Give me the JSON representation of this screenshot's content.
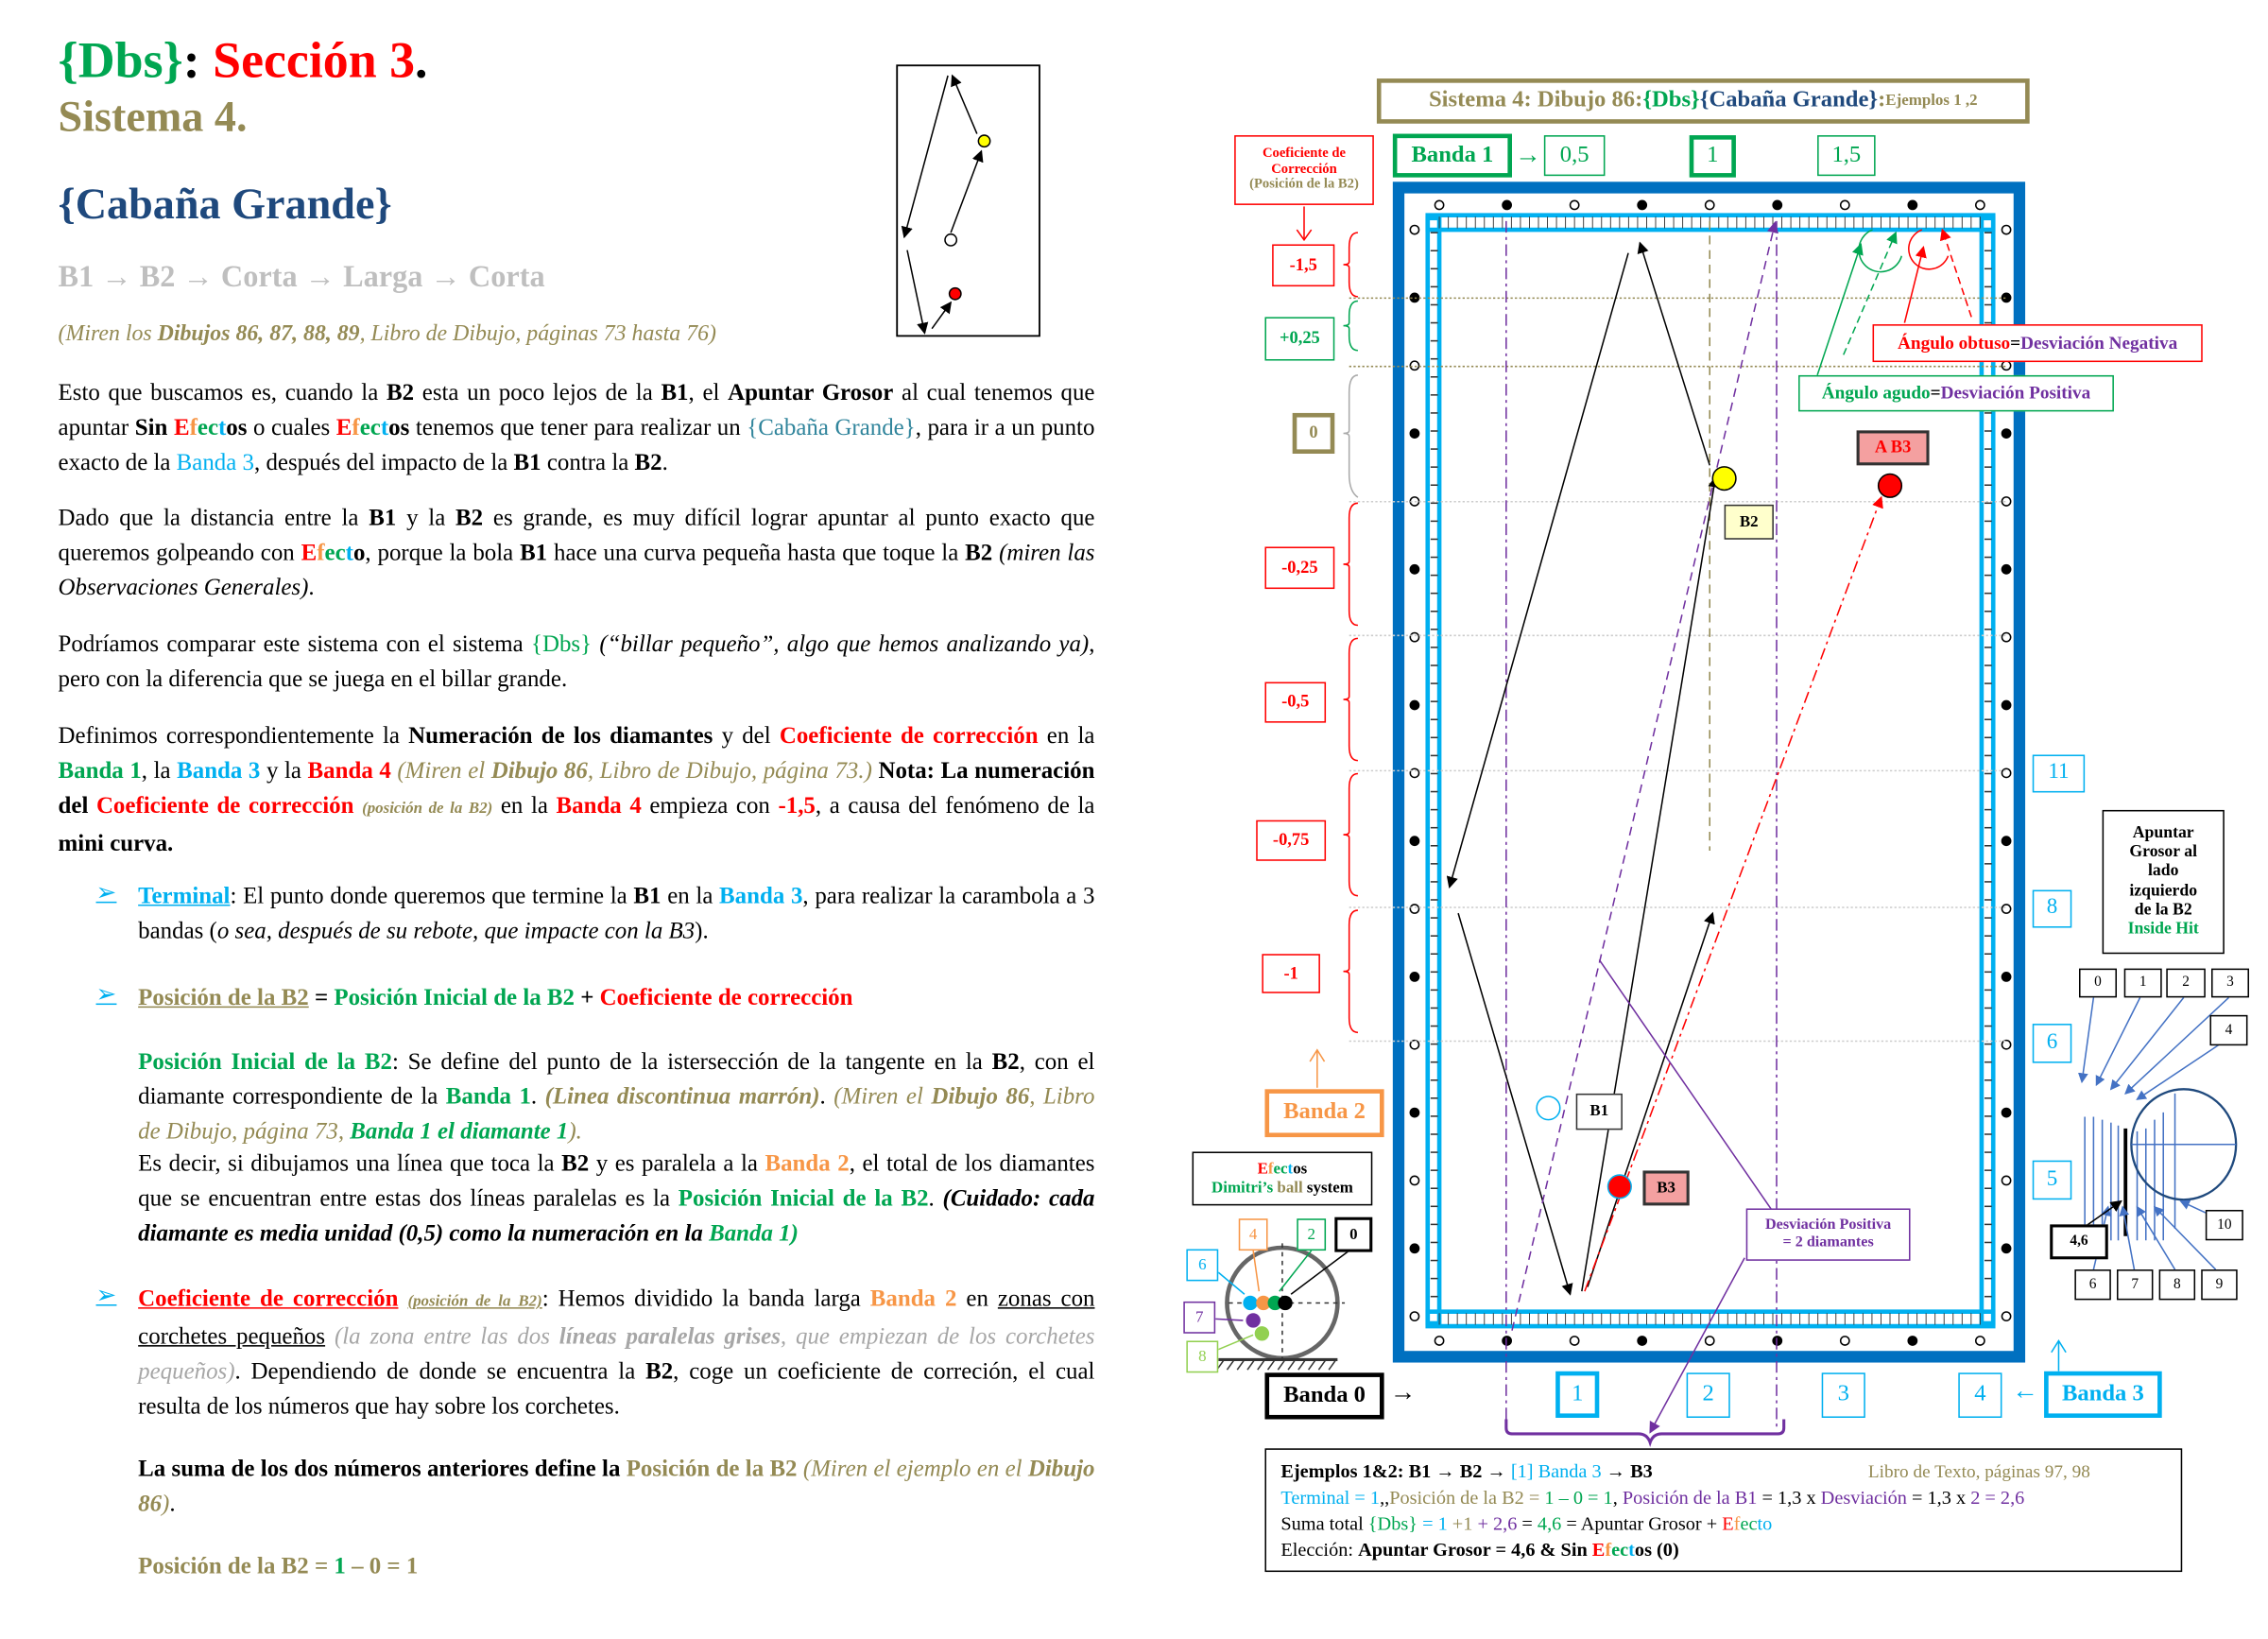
{
  "header": {
    "title": [
      [
        "{Dbs}",
        "g"
      ],
      [
        ": ",
        "k"
      ],
      [
        "Sección 3",
        "r"
      ],
      [
        ".",
        "k"
      ]
    ],
    "sistema": "Sistema 4.",
    "cabana": "{Cabaña Grande}",
    "route": "B1 → B2 → Corta → Larga → Corta",
    "ref": [
      [
        "(Miren los ",
        ""
      ],
      [
        "Dibujos 86, 87, 88, 89",
        "b"
      ],
      [
        ", Libro de Dibujo, páginas 73 hasta 76)",
        ""
      ]
    ]
  },
  "colors": {
    "green": "#00A651",
    "red": "#FF0000",
    "olive": "#948A54",
    "cyan": "#00B0F0",
    "orange": "#F79646",
    "purple": "#7030A0",
    "navy": "#1F497D",
    "table_blue": "#0070C0"
  },
  "body": {
    "p1": [
      [
        "Esto que buscamos es, cuando la ",
        ""
      ],
      [
        "B2",
        "b"
      ],
      [
        " esta un poco lejos de la ",
        ""
      ],
      [
        "B1",
        "b"
      ],
      [
        ", el ",
        ""
      ],
      [
        "Apuntar Grosor",
        "b"
      ],
      [
        " al cual tenemos que apuntar ",
        ""
      ],
      [
        "Sin",
        "b"
      ],
      [
        " ",
        ""
      ],
      [
        "E",
        "b r"
      ],
      [
        "f",
        "b or"
      ],
      [
        "ec",
        "b g"
      ],
      [
        "t",
        "b c"
      ],
      [
        "os",
        "b"
      ],
      [
        " o cuales ",
        ""
      ],
      [
        "E",
        "b r"
      ],
      [
        "f",
        "b or"
      ],
      [
        "ec",
        "b g"
      ],
      [
        "t",
        "b c"
      ],
      [
        "os",
        "b"
      ],
      [
        " tenemos que tener para realizar un ",
        ""
      ],
      [
        "{Cabaña Grande}",
        "t"
      ],
      [
        ", para ir a un punto exacto de la ",
        ""
      ],
      [
        "Banda 3",
        "c"
      ],
      [
        ", después del impacto de la ",
        ""
      ],
      [
        "B1",
        "b"
      ],
      [
        " contra la ",
        ""
      ],
      [
        "B2",
        "b"
      ],
      [
        ".",
        ""
      ]
    ],
    "p2": [
      [
        "Dado que la distancia entre la ",
        ""
      ],
      [
        "B1",
        "b"
      ],
      [
        " y la ",
        ""
      ],
      [
        "B2",
        "b"
      ],
      [
        " es grande, es muy difícil lograr apuntar al punto exacto que queremos golpeando con ",
        ""
      ],
      [
        "E",
        "b r"
      ],
      [
        "f",
        "b or"
      ],
      [
        "ec",
        "b g"
      ],
      [
        "t",
        "b c"
      ],
      [
        "o",
        "b"
      ],
      [
        ", porque la bola ",
        ""
      ],
      [
        "B1",
        "b"
      ],
      [
        " hace una curva pequeña hasta que toque la ",
        ""
      ],
      [
        "B2",
        "b"
      ],
      [
        " ",
        ""
      ],
      [
        "(miren las Observaciones Generales)",
        "i"
      ],
      [
        ".",
        ""
      ]
    ],
    "p3": [
      [
        "Podríamos comparar este sistema con el sistema ",
        ""
      ],
      [
        "{Dbs}",
        "g"
      ],
      [
        " ",
        ""
      ],
      [
        "(“billar pequeño”, algo que hemos analizando ya)",
        "i"
      ],
      [
        ", pero con la diferencia que se juega en el billar grande.",
        ""
      ]
    ],
    "p4": [
      [
        "Definimos correspondientemente la ",
        ""
      ],
      [
        "Numeración de los diamantes",
        "b"
      ],
      [
        " y del ",
        ""
      ],
      [
        "Coeficiente de corrección",
        "b r"
      ],
      [
        " en la ",
        ""
      ],
      [
        "Banda 1",
        "b g"
      ],
      [
        ", la ",
        ""
      ],
      [
        "Banda 3",
        "b c"
      ],
      [
        " y la ",
        ""
      ],
      [
        "Banda 4",
        "b r"
      ],
      [
        " ",
        ""
      ],
      [
        "(Miren el ",
        "i o"
      ],
      [
        "Dibujo 86",
        "i o b"
      ],
      [
        ", Libro de Dibujo, página 73.)",
        "i o"
      ],
      [
        " ",
        ""
      ],
      [
        "Nota: La numeración del ",
        "b"
      ],
      [
        "Coeficiente de corrección",
        "b r"
      ],
      [
        " ",
        ""
      ],
      [
        "(posición de la B2)",
        "i o b sm"
      ],
      [
        " en la ",
        ""
      ],
      [
        "Banda 4",
        "b r"
      ],
      [
        " empieza con ",
        ""
      ],
      [
        "-1,5",
        "b r"
      ],
      [
        ", a causa del fenómeno de la ",
        ""
      ],
      [
        "mini curva.",
        "b"
      ]
    ],
    "b1": [
      [
        "Terminal",
        "u c b"
      ],
      [
        ": El punto donde queremos que termine la ",
        ""
      ],
      [
        "B1",
        "b"
      ],
      [
        " en la ",
        ""
      ],
      [
        "Banda 3",
        "b c"
      ],
      [
        ", para realizar la carambola a 3 bandas (",
        ""
      ],
      [
        "o sea, después de su rebote, que impacte con la B3",
        "i"
      ],
      [
        ").",
        ""
      ]
    ],
    "b2": [
      [
        "Posición de la B2",
        "u o b"
      ],
      [
        "  = ",
        "b"
      ],
      [
        "Posición Inicial de la B2",
        "b g"
      ],
      [
        "  + ",
        "b"
      ],
      [
        "Coeficiente de corrección",
        "b r"
      ]
    ],
    "p5": [
      [
        "Posición Inicial de la B2",
        "b g"
      ],
      [
        ": Se define del punto de la istersección de la tangente en la ",
        ""
      ],
      [
        "B2",
        "b"
      ],
      [
        ", con el diamante correspondiente de la ",
        ""
      ],
      [
        "Banda 1",
        "b g"
      ],
      [
        ". ",
        ""
      ],
      [
        "(Linea discontinua marrón)",
        "i o b"
      ],
      [
        ". ",
        ""
      ],
      [
        "(Miren el ",
        "i o"
      ],
      [
        "Dibujo 86",
        "i o b"
      ],
      [
        ", Libro de Dibujo, página 73, ",
        "i o"
      ],
      [
        "Banda 1 el diamante 1",
        "i g b"
      ],
      [
        ").",
        "i o"
      ]
    ],
    "p6": [
      [
        "Es decir, si dibujamos una línea que toca la ",
        ""
      ],
      [
        "B2",
        "b"
      ],
      [
        " y es paralela a la ",
        ""
      ],
      [
        "Banda 2",
        "b or"
      ],
      [
        ", el total de los diamantes que se encuentran entre estas dos líneas paralelas es la ",
        ""
      ],
      [
        "Posición Inicial de la B2",
        "b g"
      ],
      [
        ". ",
        ""
      ],
      [
        "(Cuidado: cada diamante es media unidad (0,5) como la numeración en la ",
        "i b"
      ],
      [
        "Banda 1)",
        "i b g"
      ]
    ],
    "b3": [
      [
        "Coeficiente de corrección",
        "u r b"
      ],
      [
        " ",
        ""
      ],
      [
        "(posición de la B2)",
        "u o i b sm"
      ],
      [
        ": Hemos dividido la banda larga ",
        ""
      ],
      [
        "Banda 2",
        "b or"
      ],
      [
        " en ",
        ""
      ],
      [
        "zonas con corchetes pequeños",
        "u"
      ],
      [
        " ",
        ""
      ],
      [
        "(la zona entre las dos ",
        "i gy"
      ],
      [
        "líneas paralelas grises",
        "i gy b"
      ],
      [
        ", que empiezan de los corchetes pequeños)",
        "i gy"
      ],
      [
        ". Dependiendo de donde se encuentra la ",
        ""
      ],
      [
        "B2",
        "b"
      ],
      [
        ", coge un coeficiente de correción, el cual resulta de los números que hay sobre los corchetes.",
        ""
      ]
    ],
    "p7": [
      [
        "La suma de los dos números anteriores define la ",
        "b"
      ],
      [
        "Posición de la B2",
        "b o"
      ],
      [
        " ",
        ""
      ],
      [
        "(Miren el ejemplo en el ",
        "i o"
      ],
      [
        "Dibujo 86",
        "i o b"
      ],
      [
        ")",
        "i o"
      ],
      [
        ".",
        ""
      ]
    ],
    "p8": [
      [
        "Posición de la B2",
        "b o"
      ],
      [
        " = ",
        "b o"
      ],
      [
        "1",
        "b g"
      ],
      [
        " – 0 = 1",
        "b o"
      ]
    ],
    "bullet_icon": "➢"
  },
  "diagram": {
    "title": [
      [
        "Sistema 4: Dibujo 86: ",
        "o b"
      ],
      [
        "{Dbs}",
        "g b"
      ],
      [
        " ",
        ""
      ],
      [
        "{Cabaña Grande}",
        "n b"
      ],
      [
        ": ",
        "o b"
      ],
      [
        "Ejemplos 1 ,2",
        "o sm b"
      ]
    ],
    "coef_box": [
      "Coeficiente de",
      "Corrección",
      "(Posición de la B2)"
    ],
    "banda1": "Banda 1",
    "banda1_values": [
      "0,5",
      "1",
      "1,5"
    ],
    "coef_values": [
      "-1,5",
      "+0,25",
      "0",
      "-0,25",
      "-0,5",
      "-0,75",
      "-1"
    ],
    "angulo_obtuso": [
      [
        "Ángulo obtuso",
        "r b"
      ],
      [
        " = ",
        "b"
      ],
      [
        "Desviación Negativa",
        "p b"
      ]
    ],
    "angulo_agudo": [
      [
        "Ángulo agudo",
        "g b"
      ],
      [
        " = ",
        "b"
      ],
      [
        "Desviación Positiva",
        "p b"
      ]
    ],
    "ball_labels": {
      "a_b3": "A B3",
      "b2": "B2",
      "b1": "B1",
      "b3": "B3"
    },
    "desviacion": [
      "Desviación Positiva",
      "= 2 diamantes"
    ],
    "banda2": "Banda 2",
    "efectos_title": [
      [
        "E",
        "r b"
      ],
      [
        "f",
        "or b"
      ],
      [
        "ec",
        "g b"
      ],
      [
        "t",
        "c b"
      ],
      [
        "os",
        "b"
      ]
    ],
    "efectos_sub": [
      [
        "Dimitri’s",
        "g b"
      ],
      [
        " ball ",
        "o b"
      ],
      [
        "system",
        "b"
      ]
    ],
    "efectos_numbers": [
      "4",
      "2",
      "0",
      "6",
      "7",
      "8"
    ],
    "banda0": "Banda 0",
    "banda3": "Banda 3",
    "banda3_values": [
      "1",
      "2",
      "3",
      "4"
    ],
    "banda4_values": [
      "11",
      "8",
      "6",
      "5"
    ],
    "apuntar": [
      "Apuntar",
      "Grosor al",
      "lado",
      "izquierdo",
      "de la B2"
    ],
    "inside_hit": "Inside Hit",
    "grosor_top": [
      "0",
      "1",
      "2",
      "3",
      "4"
    ],
    "grosor_bottom": [
      "6",
      "7",
      "8",
      "9",
      "10"
    ],
    "grosor_selected": "4,6",
    "arrow": "→",
    "arrow_left": "←"
  },
  "summary": {
    "l1": [
      [
        "Ejemplos 1&2: B1 → B2 → ",
        "b"
      ],
      [
        "[1] Banda 3",
        "c"
      ],
      [
        " → B3",
        "b"
      ]
    ],
    "l1_ref": "Libro de Texto, páginas 97, 98",
    "l2": [
      [
        "Terminal = 1",
        "c"
      ],
      [
        ",,",
        ""
      ],
      [
        "Posición de la B2 = ",
        "o"
      ],
      [
        "1",
        "g"
      ],
      [
        " – 0 = 1",
        "g"
      ],
      [
        ", ",
        ""
      ],
      [
        "Posición de la B1",
        "p"
      ],
      [
        " = 1,3 x ",
        ""
      ],
      [
        "Desviación",
        "p"
      ],
      [
        " = 1,3 x ",
        ""
      ],
      [
        "2 = 2,6",
        "p"
      ]
    ],
    "l3": [
      [
        "Suma total ",
        ""
      ],
      [
        "{Dbs}",
        "g"
      ],
      [
        " = 1",
        "c"
      ],
      [
        " +1",
        "o"
      ],
      [
        " + 2,6",
        "p"
      ],
      [
        " = ",
        ""
      ],
      [
        "4,6",
        "g"
      ],
      [
        " = Apuntar Grosor + ",
        ""
      ],
      [
        "E",
        "r"
      ],
      [
        "f",
        "or"
      ],
      [
        "ec",
        "g"
      ],
      [
        "to",
        "c"
      ]
    ],
    "l4": [
      [
        "Elección: ",
        ""
      ],
      [
        "Apuntar Grosor = 4,6 & Sin ",
        "b"
      ],
      [
        "E",
        "r b"
      ],
      [
        "f",
        "or b"
      ],
      [
        "ec",
        "g b"
      ],
      [
        "t",
        "c b"
      ],
      [
        "os",
        "b"
      ],
      [
        " (0)",
        "b"
      ]
    ]
  }
}
